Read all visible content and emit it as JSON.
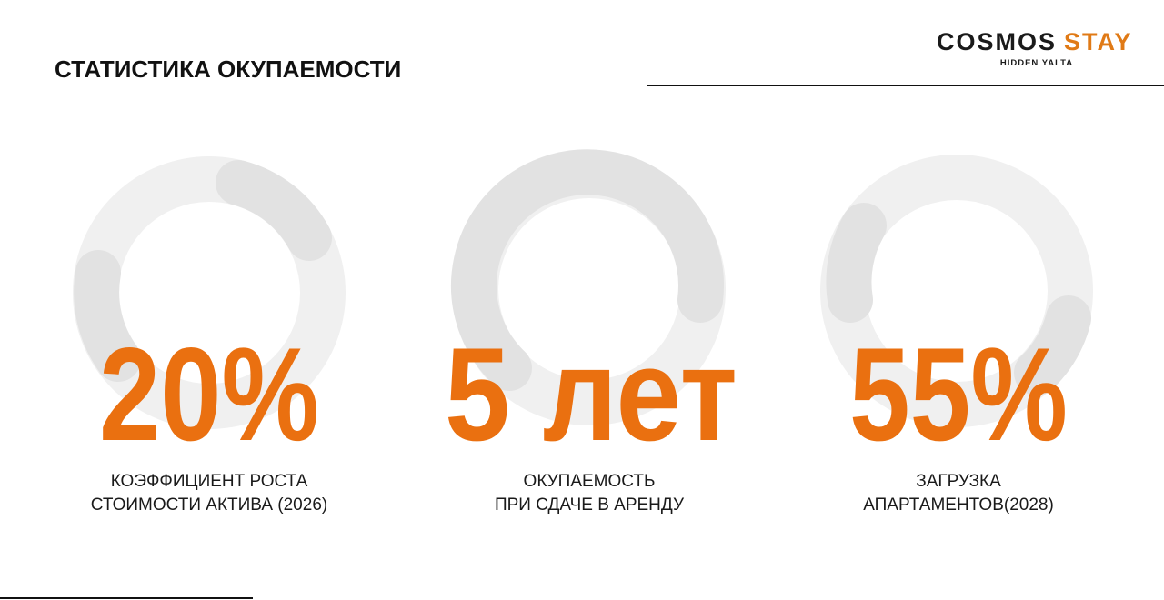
{
  "header": {
    "title": "СТАТИСТИКА ОКУПАЕМОСТИ"
  },
  "logo": {
    "brand": "COSMOS",
    "accent": "STAY",
    "tagline": "HIDDEN YALTA"
  },
  "stats": [
    {
      "value": "20%",
      "label": [
        "КОЭФФИЦИЕНТ РОСТА",
        "СТОИМОСТИ АКТИВА (2026)"
      ]
    },
    {
      "value": "5 лет",
      "label": [
        "ОКУПАЕМОСТЬ",
        "ПРИ СДАЧЕ В АРЕНДУ"
      ]
    },
    {
      "value": "55%",
      "label": [
        "ЗАГРУЗКА",
        "АПАРТАМЕНТОВ(2028)"
      ]
    }
  ]
}
